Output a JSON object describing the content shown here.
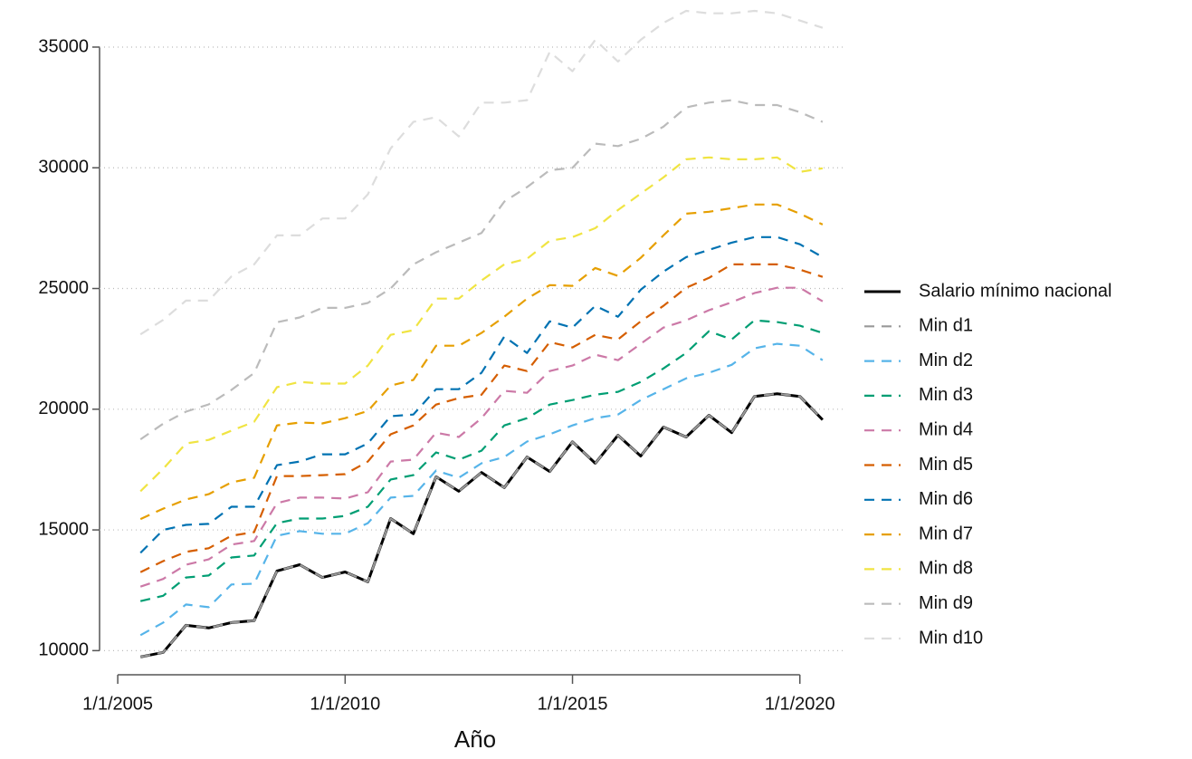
{
  "chart_data": {
    "type": "line",
    "x_label": "Año",
    "x": [
      2005.5,
      2006,
      2006.5,
      2007,
      2007.5,
      2008,
      2008.5,
      2009,
      2009.5,
      2010,
      2010.5,
      2011,
      2011.5,
      2012,
      2012.5,
      2013,
      2013.5,
      2014,
      2014.5,
      2015,
      2015.5,
      2016,
      2016.5,
      2017,
      2017.5,
      2018,
      2018.5,
      2019,
      2019.5,
      2020,
      2020.5
    ],
    "xlim": [
      2004.6,
      2021.0
    ],
    "xticks": [
      {
        "value": 2005,
        "label": "1/1/2005"
      },
      {
        "value": 2010,
        "label": "1/1/2010"
      },
      {
        "value": 2015,
        "label": "1/1/2015"
      },
      {
        "value": 2020,
        "label": "1/1/2020"
      }
    ],
    "ylim": [
      9000,
      36500
    ],
    "yticks": [
      10000,
      15000,
      20000,
      25000,
      30000,
      35000
    ],
    "grid": true,
    "legend": "right",
    "series": [
      {
        "name": "Salario mínimo nacional",
        "color": "#000000",
        "linestyle": "solid",
        "values": [
          9740,
          9925,
          11050,
          10940,
          11160,
          11240,
          13300,
          13560,
          13030,
          13260,
          12850,
          15470,
          14840,
          17200,
          16600,
          17380,
          16750,
          18020,
          17420,
          18650,
          17760,
          18920,
          18060,
          19260,
          18850,
          19750,
          19030,
          20530,
          20640,
          20530,
          19560
        ]
      },
      {
        "name": "Min d1",
        "color": "#999999",
        "linestyle": "dashed",
        "values": [
          9740,
          9925,
          11050,
          10940,
          11160,
          11240,
          13300,
          13560,
          13030,
          13260,
          12850,
          15470,
          14840,
          17200,
          16600,
          17380,
          16750,
          18020,
          17420,
          18650,
          17760,
          18920,
          18060,
          19260,
          18850,
          19750,
          19030,
          20530,
          20640,
          20530,
          19560
        ]
      },
      {
        "name": "Min d2",
        "color": "#56b4e9",
        "linestyle": "dashed",
        "values": [
          10640,
          11160,
          11910,
          11800,
          12740,
          12770,
          14760,
          14950,
          14840,
          14840,
          15280,
          16340,
          16410,
          17460,
          17160,
          17760,
          18020,
          18660,
          18960,
          19330,
          19630,
          19780,
          20380,
          20830,
          21280,
          21510,
          21840,
          22520,
          22710,
          22630,
          22030
        ]
      },
      {
        "name": "Min d3",
        "color": "#009e73",
        "linestyle": "dashed",
        "values": [
          12050,
          12270,
          13030,
          13110,
          13860,
          13940,
          15280,
          15470,
          15470,
          15580,
          15960,
          17090,
          17270,
          18210,
          17910,
          18280,
          19330,
          19630,
          20190,
          20380,
          20600,
          20720,
          21130,
          21690,
          22330,
          23230,
          22890,
          23680,
          23610,
          23460,
          23160
        ]
      },
      {
        "name": "Min d4",
        "color": "#cc79a7",
        "linestyle": "dashed",
        "values": [
          12650,
          12970,
          13560,
          13780,
          14390,
          14540,
          16110,
          16340,
          16340,
          16300,
          16560,
          17830,
          17910,
          19030,
          18850,
          19630,
          20760,
          20680,
          21580,
          21810,
          22260,
          22030,
          22710,
          23380,
          23680,
          24100,
          24430,
          24810,
          25030,
          25030,
          24470
        ]
      },
      {
        "name": "Min d5",
        "color": "#d55e00",
        "linestyle": "dashed",
        "values": [
          13250,
          13710,
          14090,
          14240,
          14760,
          14910,
          17230,
          17230,
          17270,
          17310,
          17830,
          18960,
          19330,
          20190,
          20460,
          20600,
          21810,
          21580,
          22780,
          22560,
          23080,
          22890,
          23640,
          24280,
          25030,
          25440,
          26000,
          26000,
          26000,
          25780,
          25480
        ]
      },
      {
        "name": "Min d6",
        "color": "#0072b2",
        "linestyle": "dashed",
        "values": [
          14050,
          15000,
          15210,
          15250,
          15960,
          15960,
          17680,
          17830,
          18130,
          18130,
          18580,
          19710,
          19780,
          20830,
          20830,
          21510,
          23010,
          22330,
          23640,
          23380,
          24280,
          23830,
          24950,
          25700,
          26300,
          26600,
          26900,
          27130,
          27130,
          26830,
          26300
        ]
      },
      {
        "name": "Min d7",
        "color": "#e69f00",
        "linestyle": "dashed",
        "values": [
          15450,
          15880,
          16260,
          16480,
          16970,
          17160,
          19330,
          19450,
          19410,
          19630,
          19930,
          20980,
          21210,
          22630,
          22630,
          23160,
          23830,
          24580,
          25140,
          25110,
          25850,
          25520,
          26270,
          27200,
          28100,
          28180,
          28330,
          28480,
          28480,
          28100,
          27650
        ]
      },
      {
        "name": "Min d8",
        "color": "#f0e442",
        "linestyle": "dashed",
        "values": [
          16600,
          17530,
          18580,
          18730,
          19110,
          19480,
          20910,
          21130,
          21060,
          21060,
          21810,
          23080,
          23270,
          24580,
          24580,
          25330,
          26000,
          26230,
          26980,
          27130,
          27500,
          28250,
          28930,
          29600,
          30350,
          30430,
          30350,
          30350,
          30430,
          29830,
          29980
        ]
      },
      {
        "name": "Min d9",
        "color": "#bbbbbb",
        "linestyle": "dashed",
        "values": [
          18750,
          19400,
          19900,
          20200,
          20800,
          21500,
          23600,
          23800,
          24200,
          24200,
          24400,
          25000,
          26000,
          26500,
          26900,
          27300,
          28600,
          29200,
          29900,
          30000,
          31000,
          30900,
          31200,
          31700,
          32500,
          32700,
          32800,
          32600,
          32600,
          32300,
          31900
        ]
      },
      {
        "name": "Min d10",
        "color": "#dddddd",
        "linestyle": "dashed",
        "values": [
          23100,
          23700,
          24500,
          24500,
          25500,
          26000,
          27200,
          27200,
          27900,
          27900,
          28900,
          30800,
          31900,
          32100,
          31300,
          32700,
          32700,
          32800,
          34800,
          34000,
          35300,
          34400,
          35300,
          36000,
          36500,
          36400,
          36400,
          36500,
          36400,
          36100,
          35800
        ]
      }
    ]
  }
}
